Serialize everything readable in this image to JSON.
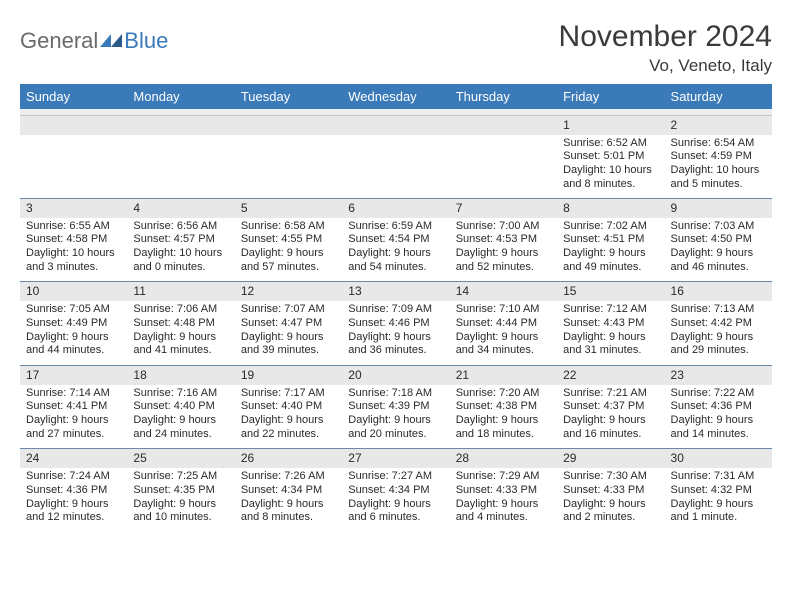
{
  "logo": {
    "general": "General",
    "blue": "Blue"
  },
  "title": "November 2024",
  "location": "Vo, Veneto, Italy",
  "colors": {
    "header_bg": "#3a7ab8",
    "header_text": "#ffffff",
    "daynum_bg": "#e8e8e8",
    "border": "#6a8aa8",
    "text": "#2a2a2a",
    "logo_gray": "#6a6a6a",
    "logo_blue": "#3a7ab8"
  },
  "weekdays": [
    "Sunday",
    "Monday",
    "Tuesday",
    "Wednesday",
    "Thursday",
    "Friday",
    "Saturday"
  ],
  "weeks": [
    {
      "nums": [
        "",
        "",
        "",
        "",
        "",
        "1",
        "2"
      ],
      "cells": [
        "",
        "",
        "",
        "",
        "",
        "Sunrise: 6:52 AM\nSunset: 5:01 PM\nDaylight: 10 hours and 8 minutes.",
        "Sunrise: 6:54 AM\nSunset: 4:59 PM\nDaylight: 10 hours and 5 minutes."
      ]
    },
    {
      "nums": [
        "3",
        "4",
        "5",
        "6",
        "7",
        "8",
        "9"
      ],
      "cells": [
        "Sunrise: 6:55 AM\nSunset: 4:58 PM\nDaylight: 10 hours and 3 minutes.",
        "Sunrise: 6:56 AM\nSunset: 4:57 PM\nDaylight: 10 hours and 0 minutes.",
        "Sunrise: 6:58 AM\nSunset: 4:55 PM\nDaylight: 9 hours and 57 minutes.",
        "Sunrise: 6:59 AM\nSunset: 4:54 PM\nDaylight: 9 hours and 54 minutes.",
        "Sunrise: 7:00 AM\nSunset: 4:53 PM\nDaylight: 9 hours and 52 minutes.",
        "Sunrise: 7:02 AM\nSunset: 4:51 PM\nDaylight: 9 hours and 49 minutes.",
        "Sunrise: 7:03 AM\nSunset: 4:50 PM\nDaylight: 9 hours and 46 minutes."
      ]
    },
    {
      "nums": [
        "10",
        "11",
        "12",
        "13",
        "14",
        "15",
        "16"
      ],
      "cells": [
        "Sunrise: 7:05 AM\nSunset: 4:49 PM\nDaylight: 9 hours and 44 minutes.",
        "Sunrise: 7:06 AM\nSunset: 4:48 PM\nDaylight: 9 hours and 41 minutes.",
        "Sunrise: 7:07 AM\nSunset: 4:47 PM\nDaylight: 9 hours and 39 minutes.",
        "Sunrise: 7:09 AM\nSunset: 4:46 PM\nDaylight: 9 hours and 36 minutes.",
        "Sunrise: 7:10 AM\nSunset: 4:44 PM\nDaylight: 9 hours and 34 minutes.",
        "Sunrise: 7:12 AM\nSunset: 4:43 PM\nDaylight: 9 hours and 31 minutes.",
        "Sunrise: 7:13 AM\nSunset: 4:42 PM\nDaylight: 9 hours and 29 minutes."
      ]
    },
    {
      "nums": [
        "17",
        "18",
        "19",
        "20",
        "21",
        "22",
        "23"
      ],
      "cells": [
        "Sunrise: 7:14 AM\nSunset: 4:41 PM\nDaylight: 9 hours and 27 minutes.",
        "Sunrise: 7:16 AM\nSunset: 4:40 PM\nDaylight: 9 hours and 24 minutes.",
        "Sunrise: 7:17 AM\nSunset: 4:40 PM\nDaylight: 9 hours and 22 minutes.",
        "Sunrise: 7:18 AM\nSunset: 4:39 PM\nDaylight: 9 hours and 20 minutes.",
        "Sunrise: 7:20 AM\nSunset: 4:38 PM\nDaylight: 9 hours and 18 minutes.",
        "Sunrise: 7:21 AM\nSunset: 4:37 PM\nDaylight: 9 hours and 16 minutes.",
        "Sunrise: 7:22 AM\nSunset: 4:36 PM\nDaylight: 9 hours and 14 minutes."
      ]
    },
    {
      "nums": [
        "24",
        "25",
        "26",
        "27",
        "28",
        "29",
        "30"
      ],
      "cells": [
        "Sunrise: 7:24 AM\nSunset: 4:36 PM\nDaylight: 9 hours and 12 minutes.",
        "Sunrise: 7:25 AM\nSunset: 4:35 PM\nDaylight: 9 hours and 10 minutes.",
        "Sunrise: 7:26 AM\nSunset: 4:34 PM\nDaylight: 9 hours and 8 minutes.",
        "Sunrise: 7:27 AM\nSunset: 4:34 PM\nDaylight: 9 hours and 6 minutes.",
        "Sunrise: 7:29 AM\nSunset: 4:33 PM\nDaylight: 9 hours and 4 minutes.",
        "Sunrise: 7:30 AM\nSunset: 4:33 PM\nDaylight: 9 hours and 2 minutes.",
        "Sunrise: 7:31 AM\nSunset: 4:32 PM\nDaylight: 9 hours and 1 minute."
      ]
    }
  ]
}
